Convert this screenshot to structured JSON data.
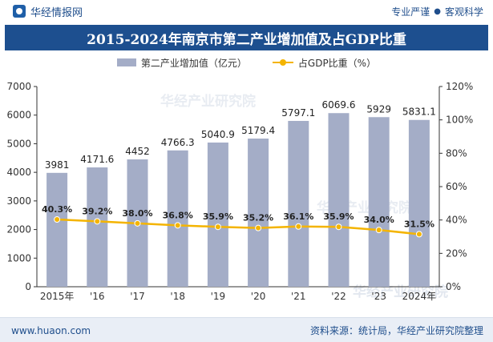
{
  "header": {
    "brand": "华经情报网",
    "tagline_left": "专业严谨",
    "tagline_right": "客观科学"
  },
  "title": "2015-2024年南京市第二产业增加值及占GDP比重",
  "chart_data": {
    "type": "bar",
    "title": "2015-2024年南京市第二产业增加值及占GDP比重",
    "categories": [
      "2015年",
      "'16",
      "'17",
      "'18",
      "'19",
      "'20",
      "'21",
      "'22",
      "'23",
      "2024年"
    ],
    "series": [
      {
        "name": "第二产业增加值（亿元）",
        "type": "bar",
        "axis": "left",
        "color": "#a4adc7",
        "values": [
          3981,
          4171.6,
          4452,
          4766.3,
          5040.9,
          5179.4,
          5797.1,
          6069.6,
          5929,
          5831.1
        ],
        "labels": [
          "3981",
          "4171.6",
          "4452",
          "4766.3",
          "5040.9",
          "5179.4",
          "5797.1",
          "6069.6",
          "5929",
          "5831.1"
        ]
      },
      {
        "name": "占GDP比重（%）",
        "type": "line",
        "axis": "right",
        "color": "#f4b400",
        "values": [
          40.3,
          39.2,
          38.0,
          36.8,
          35.9,
          35.2,
          36.1,
          35.9,
          34.0,
          31.5
        ],
        "labels": [
          "40.3%",
          "39.2%",
          "38.0%",
          "36.8%",
          "35.9%",
          "35.2%",
          "36.1%",
          "35.9%",
          "34.0%",
          "31.5%"
        ]
      }
    ],
    "y_left": {
      "min": 0,
      "max": 7000,
      "ticks": [
        0,
        1000,
        2000,
        3000,
        4000,
        5000,
        6000,
        7000
      ],
      "tick_labels": [
        "0",
        "1000",
        "2000",
        "3000",
        "4000",
        "5000",
        "6000",
        "7000"
      ]
    },
    "y_right": {
      "min": 0,
      "max": 120,
      "ticks": [
        0,
        20,
        40,
        60,
        80,
        100,
        120
      ],
      "tick_labels": [
        "0%",
        "20%",
        "40%",
        "60%",
        "80%",
        "100%",
        "120%"
      ]
    },
    "grid": false,
    "legend": "top-center",
    "watermark": "华经产业研究院"
  },
  "footer": {
    "url": "www.huaon.com",
    "source": "资料来源：统计局，华经产业研究院整理"
  }
}
